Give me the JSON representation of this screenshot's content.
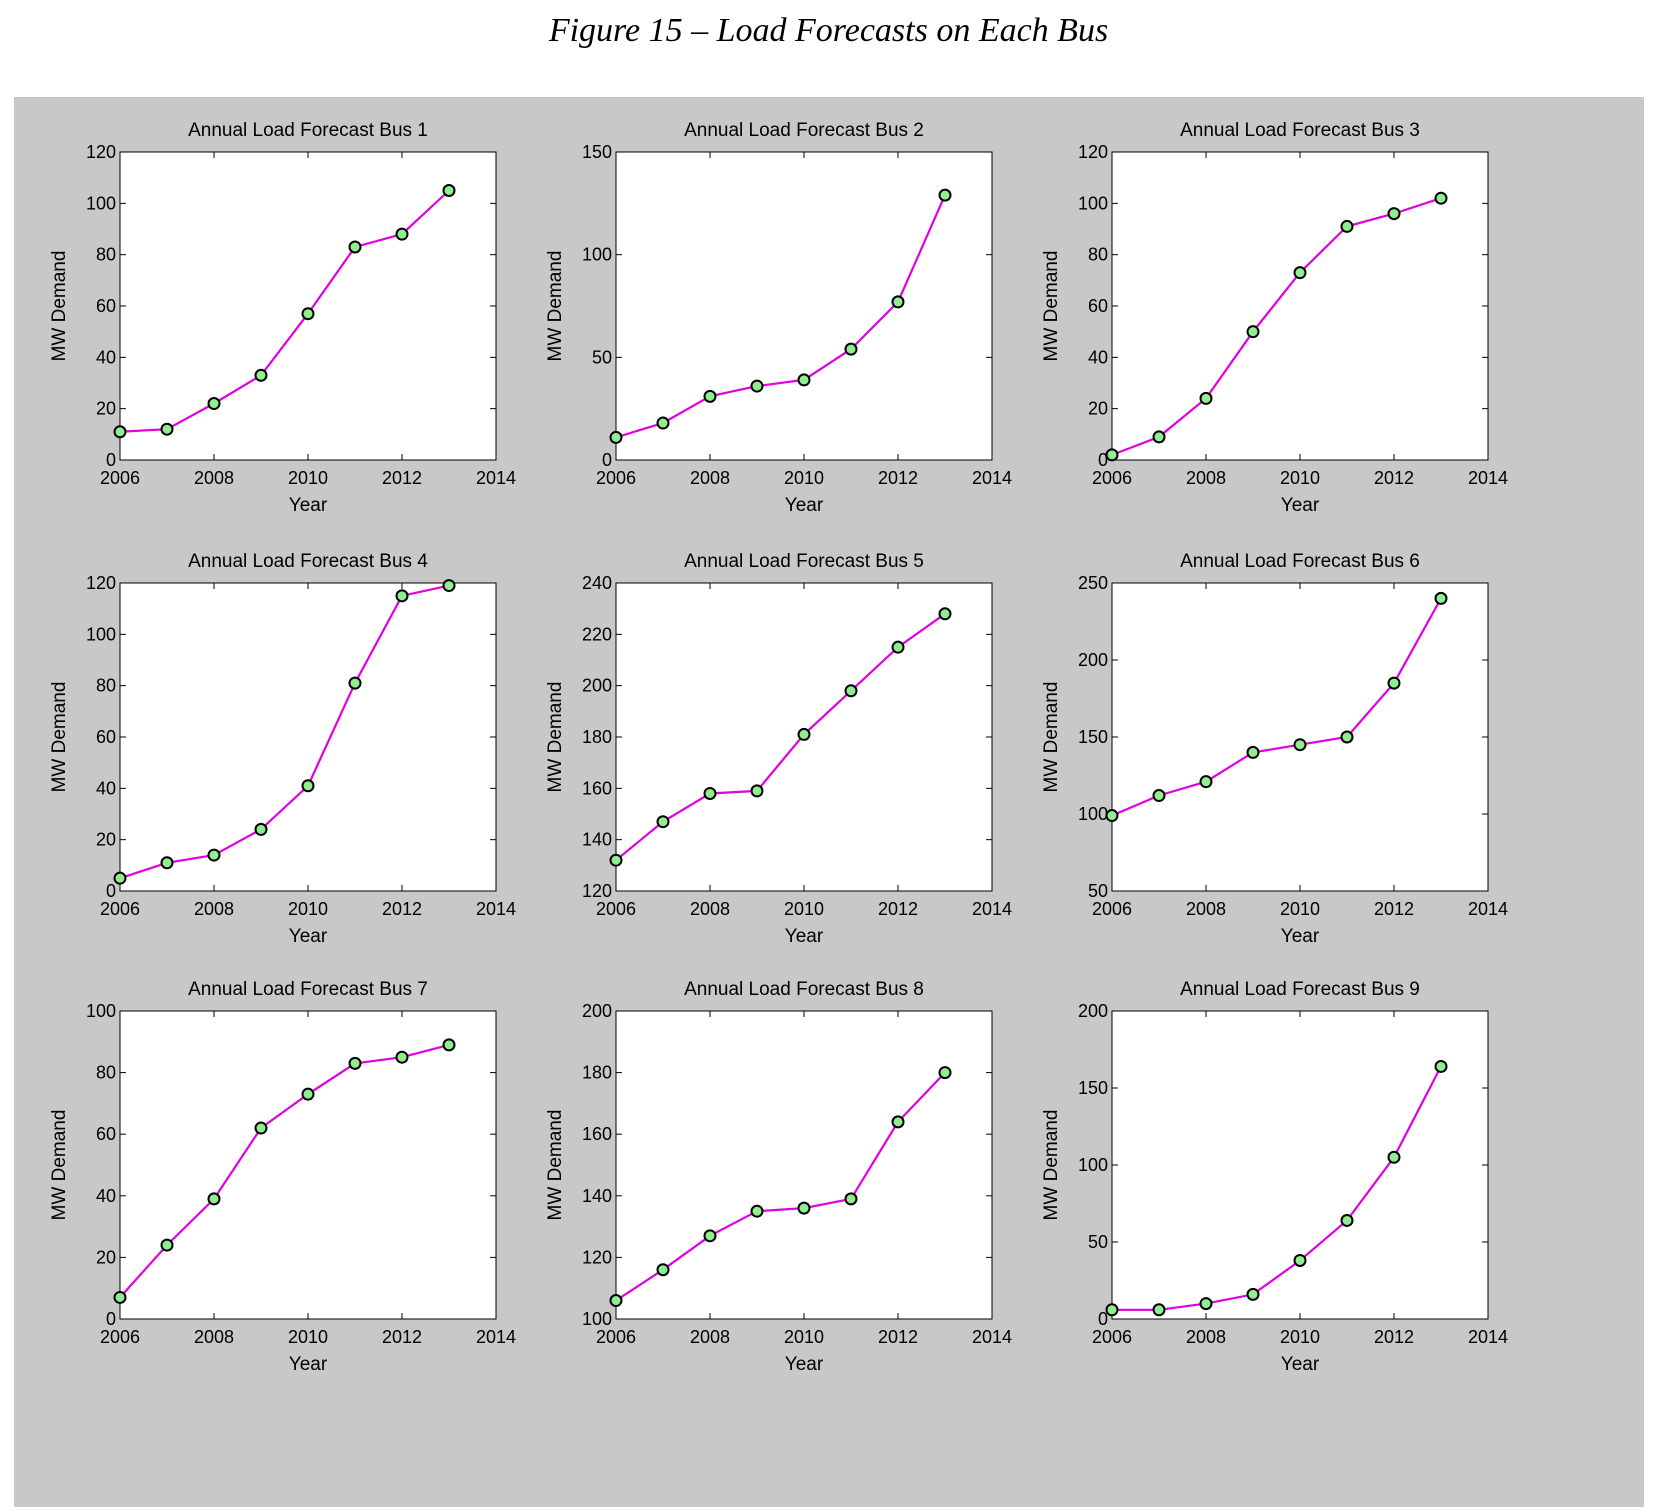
{
  "figure_title": "Figure 15 – Load Forecasts on Each Bus",
  "style": {
    "line_color": "#e100e1",
    "marker_fill": "#90ee90",
    "marker_edge": "#000000",
    "panel_bg": "#c8c8c8"
  },
  "chart_data": [
    {
      "type": "line",
      "title": "Annual Load Forecast Bus 1",
      "xlabel": "Year",
      "ylabel": "MW Demand",
      "x": [
        2006,
        2007,
        2008,
        2009,
        2010,
        2011,
        2012,
        2013
      ],
      "values": [
        11,
        12,
        22,
        33,
        57,
        83,
        88,
        105
      ],
      "xlim": [
        2006,
        2014
      ],
      "ylim": [
        0,
        120
      ],
      "xticks": [
        2006,
        2008,
        2010,
        2012,
        2014
      ],
      "yticks": [
        0,
        20,
        40,
        60,
        80,
        100,
        120
      ]
    },
    {
      "type": "line",
      "title": "Annual Load Forecast Bus 2",
      "xlabel": "Year",
      "ylabel": "MW Demand",
      "x": [
        2006,
        2007,
        2008,
        2009,
        2010,
        2011,
        2012,
        2013
      ],
      "values": [
        11,
        18,
        31,
        36,
        39,
        54,
        77,
        129
      ],
      "xlim": [
        2006,
        2014
      ],
      "ylim": [
        0,
        150
      ],
      "xticks": [
        2006,
        2008,
        2010,
        2012,
        2014
      ],
      "yticks": [
        0,
        50,
        100,
        150
      ]
    },
    {
      "type": "line",
      "title": "Annual Load Forecast Bus 3",
      "xlabel": "Year",
      "ylabel": "MW Demand",
      "x": [
        2006,
        2007,
        2008,
        2009,
        2010,
        2011,
        2012,
        2013
      ],
      "values": [
        2,
        9,
        24,
        50,
        73,
        91,
        96,
        102
      ],
      "xlim": [
        2006,
        2014
      ],
      "ylim": [
        0,
        120
      ],
      "xticks": [
        2006,
        2008,
        2010,
        2012,
        2014
      ],
      "yticks": [
        0,
        20,
        40,
        60,
        80,
        100,
        120
      ]
    },
    {
      "type": "line",
      "title": "Annual Load Forecast Bus 4",
      "xlabel": "Year",
      "ylabel": "MW Demand",
      "x": [
        2006,
        2007,
        2008,
        2009,
        2010,
        2011,
        2012,
        2013
      ],
      "values": [
        5,
        11,
        14,
        24,
        41,
        81,
        115,
        119
      ],
      "xlim": [
        2006,
        2014
      ],
      "ylim": [
        0,
        120
      ],
      "xticks": [
        2006,
        2008,
        2010,
        2012,
        2014
      ],
      "yticks": [
        0,
        20,
        40,
        60,
        80,
        100,
        120
      ]
    },
    {
      "type": "line",
      "title": "Annual Load Forecast Bus 5",
      "xlabel": "Year",
      "ylabel": "MW Demand",
      "x": [
        2006,
        2007,
        2008,
        2009,
        2010,
        2011,
        2012,
        2013
      ],
      "values": [
        132,
        147,
        158,
        159,
        181,
        198,
        215,
        228
      ],
      "xlim": [
        2006,
        2014
      ],
      "ylim": [
        120,
        240
      ],
      "xticks": [
        2006,
        2008,
        2010,
        2012,
        2014
      ],
      "yticks": [
        120,
        140,
        160,
        180,
        200,
        220,
        240
      ]
    },
    {
      "type": "line",
      "title": "Annual Load Forecast Bus 6",
      "xlabel": "Year",
      "ylabel": "MW Demand",
      "x": [
        2006,
        2007,
        2008,
        2009,
        2010,
        2011,
        2012,
        2013
      ],
      "values": [
        99,
        112,
        121,
        140,
        145,
        150,
        185,
        240
      ],
      "xlim": [
        2006,
        2014
      ],
      "ylim": [
        50,
        250
      ],
      "xticks": [
        2006,
        2008,
        2010,
        2012,
        2014
      ],
      "yticks": [
        50,
        100,
        150,
        200,
        250
      ]
    },
    {
      "type": "line",
      "title": "Annual Load Forecast Bus 7",
      "xlabel": "Year",
      "ylabel": "MW Demand",
      "x": [
        2006,
        2007,
        2008,
        2009,
        2010,
        2011,
        2012,
        2013
      ],
      "values": [
        7,
        24,
        39,
        62,
        73,
        83,
        85,
        89
      ],
      "xlim": [
        2006,
        2014
      ],
      "ylim": [
        0,
        100
      ],
      "xticks": [
        2006,
        2008,
        2010,
        2012,
        2014
      ],
      "yticks": [
        0,
        20,
        40,
        60,
        80,
        100
      ]
    },
    {
      "type": "line",
      "title": "Annual Load Forecast Bus 8",
      "xlabel": "Year",
      "ylabel": "MW Demand",
      "x": [
        2006,
        2007,
        2008,
        2009,
        2010,
        2011,
        2012,
        2013
      ],
      "values": [
        106,
        116,
        127,
        135,
        136,
        139,
        164,
        180
      ],
      "xlim": [
        2006,
        2014
      ],
      "ylim": [
        100,
        200
      ],
      "xticks": [
        2006,
        2008,
        2010,
        2012,
        2014
      ],
      "yticks": [
        100,
        120,
        140,
        160,
        180,
        200
      ]
    },
    {
      "type": "line",
      "title": "Annual Load Forecast Bus 9",
      "xlabel": "Year",
      "ylabel": "MW Demand",
      "x": [
        2006,
        2007,
        2008,
        2009,
        2010,
        2011,
        2012,
        2013
      ],
      "values": [
        6,
        6,
        10,
        16,
        38,
        64,
        105,
        164
      ],
      "xlim": [
        2006,
        2014
      ],
      "ylim": [
        0,
        200
      ],
      "xticks": [
        2006,
        2008,
        2010,
        2012,
        2014
      ],
      "yticks": [
        0,
        50,
        100,
        150,
        200
      ]
    }
  ]
}
